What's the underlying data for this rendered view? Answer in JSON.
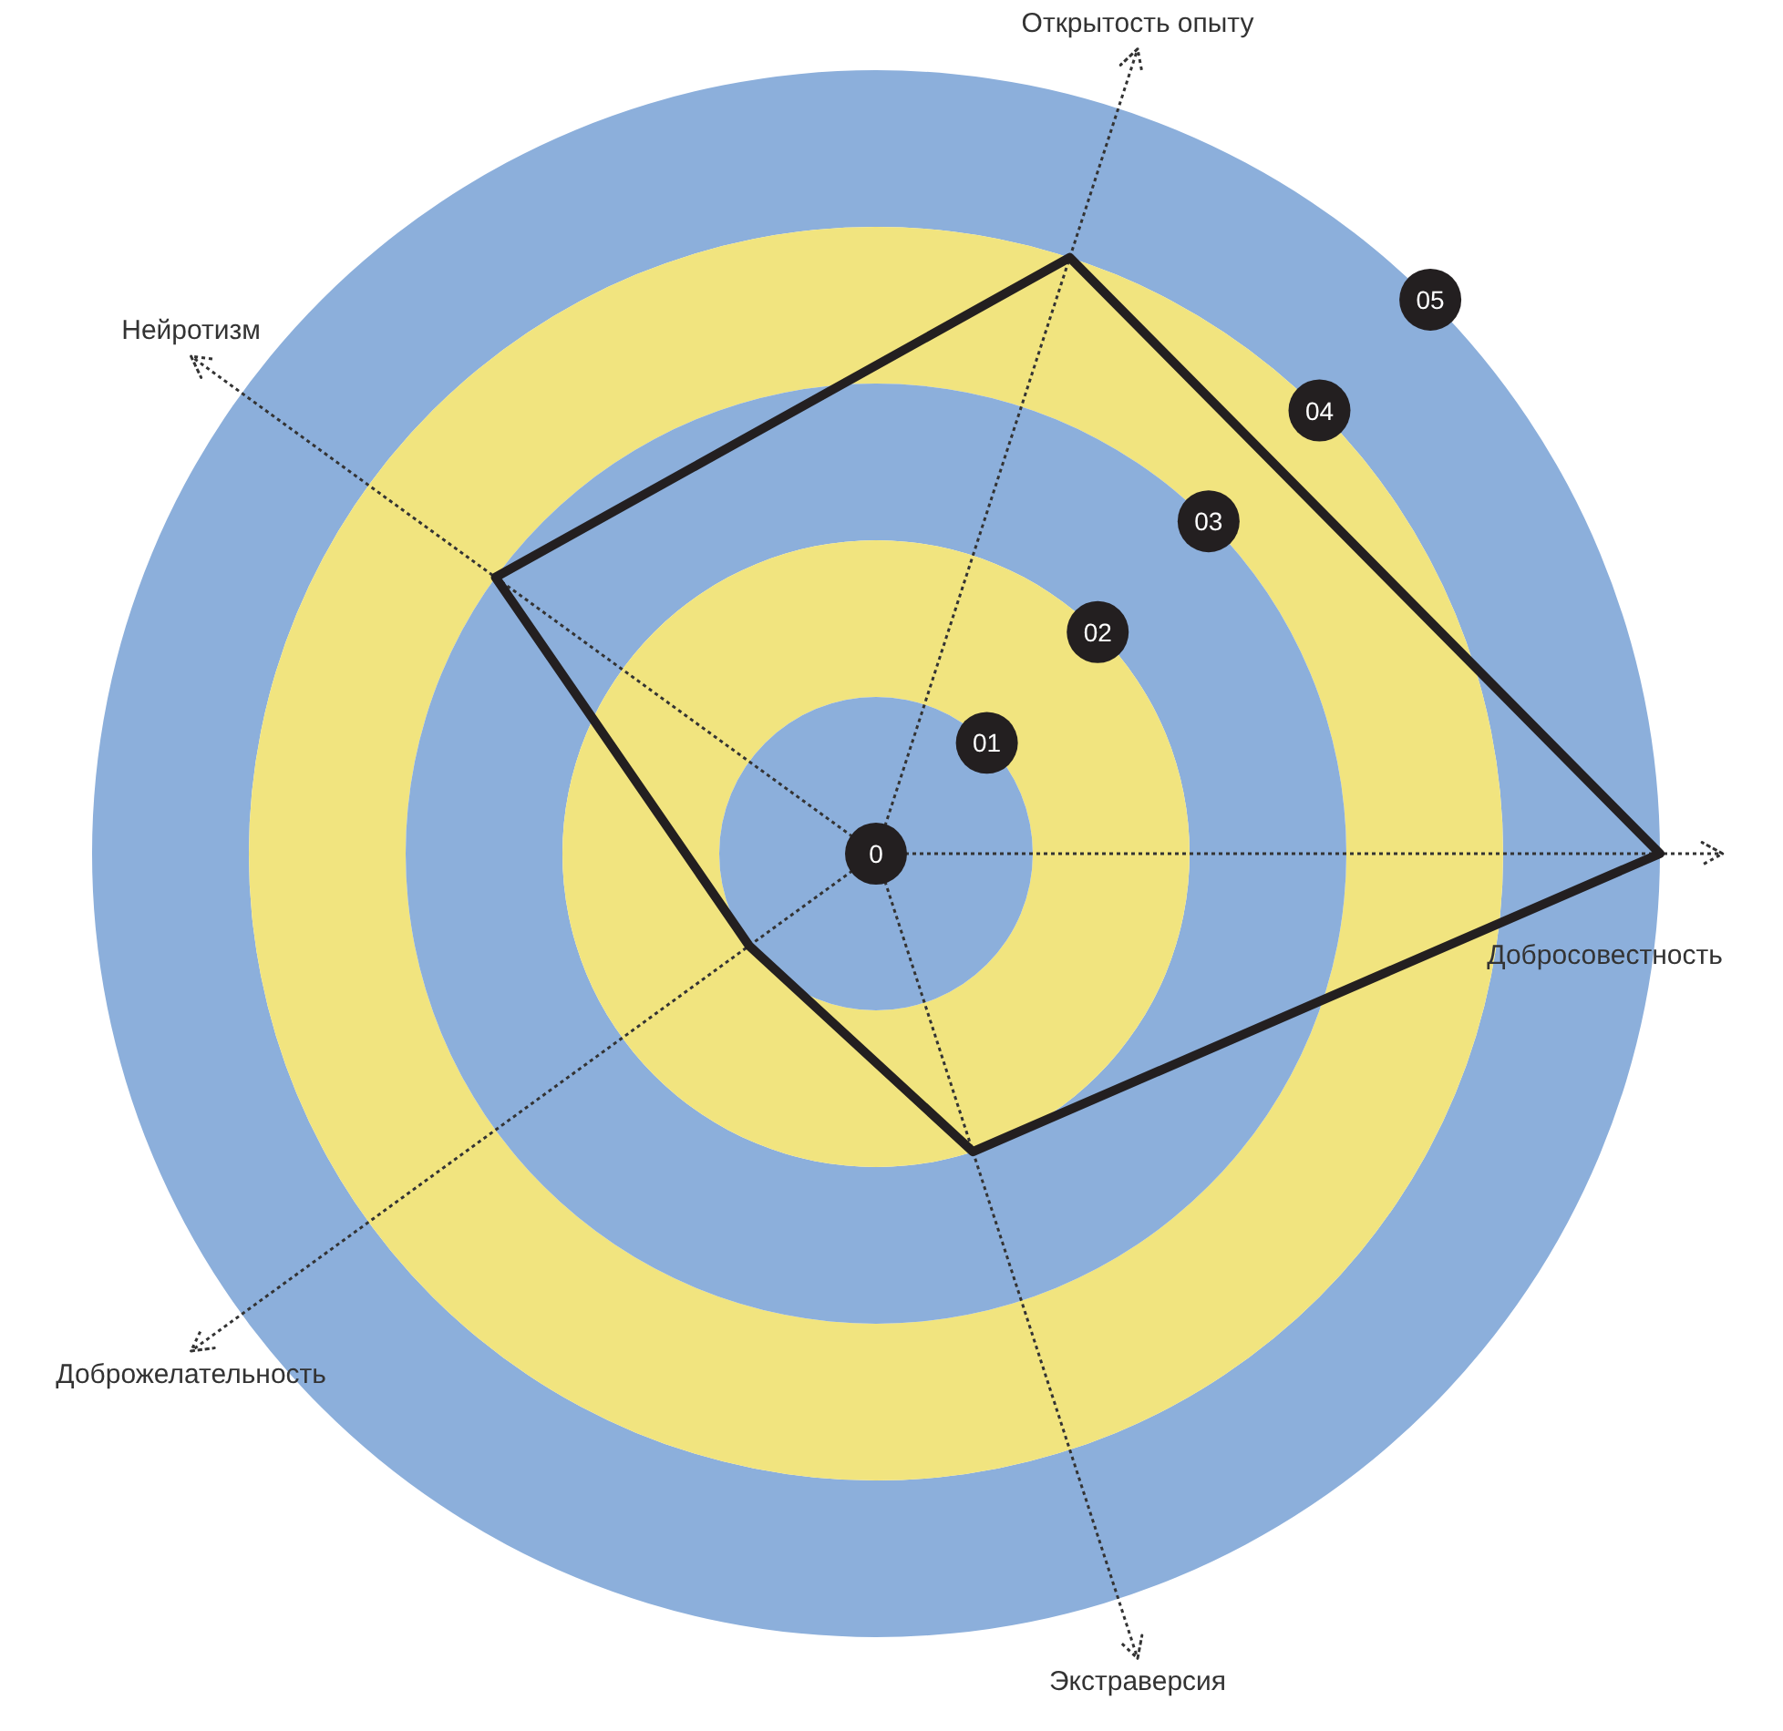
{
  "chart_data": {
    "type": "radar",
    "categories": [
      "Открытость опыту",
      "Добросовестность",
      "Экстраверсия",
      "Доброжелательность",
      "Нейротизм"
    ],
    "series": [
      {
        "color": "#231f20",
        "values": [
          4,
          5,
          2,
          1,
          3
        ]
      }
    ],
    "ylim": [
      0,
      5
    ],
    "yticks": [
      {
        "value": 0,
        "label": "0"
      },
      {
        "value": 1,
        "label": "01"
      },
      {
        "value": 2,
        "label": "02"
      },
      {
        "value": 3,
        "label": "03"
      },
      {
        "value": 4,
        "label": "04"
      },
      {
        "value": 5,
        "label": "05"
      }
    ],
    "marker": "none",
    "line_style": "solid"
  }
}
